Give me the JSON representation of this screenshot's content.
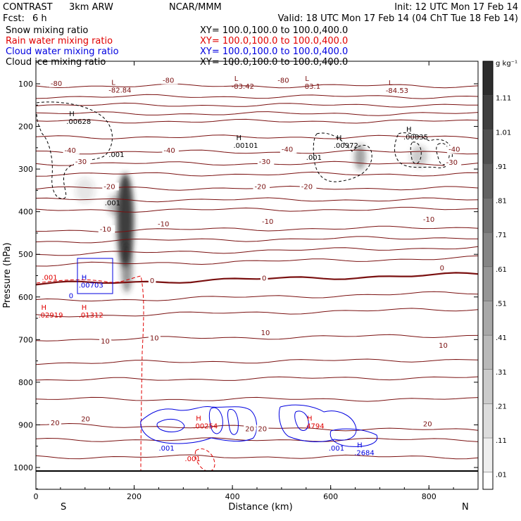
{
  "header": {
    "model": "CONTRAST",
    "resolution": "3km ARW",
    "org": "NCAR/MMM",
    "init": "Init: 12 UTC Mon 17 Feb 14",
    "fcst_label": "Fcst:",
    "fcst_value": "6 h",
    "valid": "Valid: 18 UTC Mon 17 Feb 14 (04 ChT Tue 18 Feb 14)"
  },
  "fields": [
    {
      "name": "Snow mixing ratio",
      "xy": "XY= 100.0,100.0 to 100.0,400.0",
      "color": "#000000"
    },
    {
      "name": "Rain water mixing ratio",
      "xy": "XY= 100.0,100.0 to 100.0,400.0",
      "color": "#e00000"
    },
    {
      "name": "Cloud water mixing ratio",
      "xy": "XY= 100.0,100.0 to 100.0,400.0",
      "color": "#0000e0"
    },
    {
      "name": "Cloud ice mixing ratio",
      "xy": "XY= 100.0,100.0 to 100.0,400.0",
      "color": "#000000"
    }
  ],
  "colors": {
    "isotherm": "#7a1010",
    "snow": "#000000",
    "rain": "#e00000",
    "cloud_water": "#0000e0",
    "shade_max": "#2a2a2a"
  },
  "chart_data": {
    "type": "contour",
    "xlabel": "Distance (km)",
    "ylabel": "Pressure (hPa)",
    "xlim": [
      0,
      900
    ],
    "ylim": [
      1050,
      50
    ],
    "xticks": [
      "0",
      "200",
      "400",
      "600",
      "800"
    ],
    "yticks": [
      "100",
      "200",
      "300",
      "400",
      "500",
      "600",
      "700",
      "800",
      "900",
      "1000"
    ],
    "x_end_labels": {
      "left": "S",
      "right": "N"
    },
    "colorbar": {
      "unit": "g kg⁻¹",
      "levels": [
        "1.11",
        "1.01",
        ".91",
        ".81",
        ".71",
        ".61",
        ".51",
        ".41",
        ".31",
        ".21",
        ".11",
        ".01"
      ]
    },
    "isotherms": [
      {
        "temp": "-80",
        "p": 105,
        "rise": 0
      },
      {
        "temp": "",
        "p": 130,
        "rise": 0
      },
      {
        "temp": "",
        "p": 150,
        "rise": 0
      },
      {
        "temp": "",
        "p": 170,
        "rise": 0
      },
      {
        "temp": "",
        "p": 188,
        "rise": 0
      },
      {
        "temp": "",
        "p": 225,
        "rise": 0
      },
      {
        "temp": "-40",
        "p": 260,
        "rise": 0
      },
      {
        "temp": "-30",
        "p": 287,
        "rise": 0
      },
      {
        "temp": "",
        "p": 312,
        "rise": 0
      },
      {
        "temp": "-20",
        "p": 345,
        "rise": 0
      },
      {
        "temp": "",
        "p": 372,
        "rise": 0
      },
      {
        "temp": "",
        "p": 397,
        "rise": 2
      },
      {
        "temp": "-10",
        "p": 445,
        "rise": 5
      },
      {
        "temp": "",
        "p": 470,
        "rise": 6
      },
      {
        "temp": "",
        "p": 500,
        "rise": 10
      },
      {
        "temp": "",
        "p": 525,
        "rise": 10
      },
      {
        "temp": "0",
        "p": 570,
        "rise": 14,
        "bold": true
      },
      {
        "temp": "",
        "p": 610,
        "rise": 12
      },
      {
        "temp": "",
        "p": 645,
        "rise": 10
      },
      {
        "temp": "10",
        "p": 700,
        "rise": 6
      },
      {
        "temp": "",
        "p": 755,
        "rise": 5
      },
      {
        "temp": "",
        "p": 795,
        "rise": 4
      },
      {
        "temp": "",
        "p": 840,
        "rise": 0
      },
      {
        "temp": "20",
        "p": 900,
        "rise": -8
      },
      {
        "temp": "",
        "p": 935,
        "rise": 0
      },
      {
        "temp": "",
        "p": 975,
        "rise": 0
      }
    ],
    "isotherm_labels": [
      {
        "text": "-80",
        "x": 30,
        "p": 103
      },
      {
        "text": "-80",
        "x": 258,
        "p": 96
      },
      {
        "text": "-80",
        "x": 492,
        "p": 96
      },
      {
        "text": "-40",
        "x": 58,
        "p": 260
      },
      {
        "text": "-40",
        "x": 260,
        "p": 260
      },
      {
        "text": "-40",
        "x": 500,
        "p": 258
      },
      {
        "text": "-40",
        "x": 840,
        "p": 258
      },
      {
        "text": "-30",
        "x": 80,
        "p": 287
      },
      {
        "text": "-30",
        "x": 454,
        "p": 287
      },
      {
        "text": "-30",
        "x": 835,
        "p": 288
      },
      {
        "text": "-20",
        "x": 138,
        "p": 345
      },
      {
        "text": "-20",
        "x": 445,
        "p": 345
      },
      {
        "text": "-20",
        "x": 540,
        "p": 345
      },
      {
        "text": "-10",
        "x": 130,
        "p": 445
      },
      {
        "text": "-10",
        "x": 248,
        "p": 433
      },
      {
        "text": "-10",
        "x": 460,
        "p": 427
      },
      {
        "text": "-10",
        "x": 788,
        "p": 422
      },
      {
        "text": "0",
        "x": 232,
        "p": 566
      },
      {
        "text": "0",
        "x": 460,
        "p": 560
      },
      {
        "text": "0",
        "x": 822,
        "p": 536
      },
      {
        "text": "10",
        "x": 132,
        "p": 708
      },
      {
        "text": "10",
        "x": 232,
        "p": 700
      },
      {
        "text": "10",
        "x": 458,
        "p": 688
      },
      {
        "text": "10",
        "x": 820,
        "p": 718
      },
      {
        "text": "20",
        "x": 30,
        "p": 899
      },
      {
        "text": "20",
        "x": 92,
        "p": 890
      },
      {
        "text": "20",
        "x": 426,
        "p": 913
      },
      {
        "text": "20",
        "x": 452,
        "p": 913
      },
      {
        "text": "20",
        "x": 788,
        "p": 902
      }
    ],
    "extrema": [
      {
        "mark": "L",
        "value": "-82.84",
        "x": 148,
        "p": 112,
        "color": "#7a1010"
      },
      {
        "mark": "L",
        "value": "-83.42",
        "x": 398,
        "p": 103,
        "color": "#7a1010"
      },
      {
        "mark": "L",
        "value": "-83.1",
        "x": 542,
        "p": 103,
        "color": "#7a1010"
      },
      {
        "mark": "L",
        "value": "-84.53",
        "x": 712,
        "p": 113,
        "color": "#7a1010"
      },
      {
        "mark": "H",
        "value": ".00628",
        "x": 62,
        "p": 186,
        "color": "#000000"
      },
      {
        "mark": "H",
        "value": ".00101",
        "x": 402,
        "p": 242,
        "color": "#000000"
      },
      {
        "mark": "H",
        "value": ".00972",
        "x": 606,
        "p": 242,
        "color": "#000000"
      },
      {
        "mark": "H",
        "value": ".00835",
        "x": 748,
        "p": 222,
        "color": "#000000"
      },
      {
        "mark": "H",
        "value": ".00703",
        "x": 87,
        "p": 570,
        "color": "#0000e0"
      },
      {
        "mark": "H",
        "value": ".02919",
        "x": 5,
        "p": 640,
        "color": "#e00000"
      },
      {
        "mark": "H",
        "value": ".01312",
        "x": 87,
        "p": 640,
        "color": "#e00000"
      },
      {
        "mark": "H",
        "value": ".00254",
        "x": 320,
        "p": 900,
        "color": "#e00000"
      },
      {
        "mark": "H",
        "value": ".4794",
        "x": 546,
        "p": 900,
        "color": "#e00000"
      },
      {
        "mark": "H",
        "value": ".2684",
        "x": 648,
        "p": 963,
        "color": "#0000e0"
      }
    ],
    "contour_labels": [
      {
        "text": ".001",
        "x": 148,
        "p": 272,
        "color": "#000000"
      },
      {
        "text": ".001",
        "x": 140,
        "p": 385,
        "color": "#000000"
      },
      {
        "text": ".001",
        "x": 550,
        "p": 278,
        "color": "#000000"
      },
      {
        "text": ".001",
        "x": 12,
        "p": 560,
        "color": "#e00000"
      },
      {
        "text": "0",
        "x": 67,
        "p": 603,
        "color": "#0000e0"
      },
      {
        "text": ".001",
        "x": 250,
        "p": 960,
        "color": "#0000e0"
      },
      {
        "text": ".001",
        "x": 596,
        "p": 960,
        "color": "#0000e0"
      },
      {
        "text": ".001",
        "x": 303,
        "p": 985,
        "color": "#e00000"
      }
    ],
    "shading": [
      {
        "x": 182,
        "p": 420,
        "rx": 12,
        "rp": 110,
        "value": 0.9
      },
      {
        "x": 185,
        "p": 530,
        "rx": 8,
        "rp": 60,
        "value": 0.5
      },
      {
        "x": 160,
        "p": 385,
        "rx": 10,
        "rp": 25,
        "value": 0.3
      },
      {
        "x": 660,
        "p": 272,
        "rx": 8,
        "rp": 30,
        "value": 0.45
      },
      {
        "x": 780,
        "p": 270,
        "rx": 12,
        "rp": 25,
        "value": 0.25
      },
      {
        "x": 100,
        "p": 350,
        "rx": 14,
        "rp": 30,
        "value": 0.12
      }
    ]
  }
}
